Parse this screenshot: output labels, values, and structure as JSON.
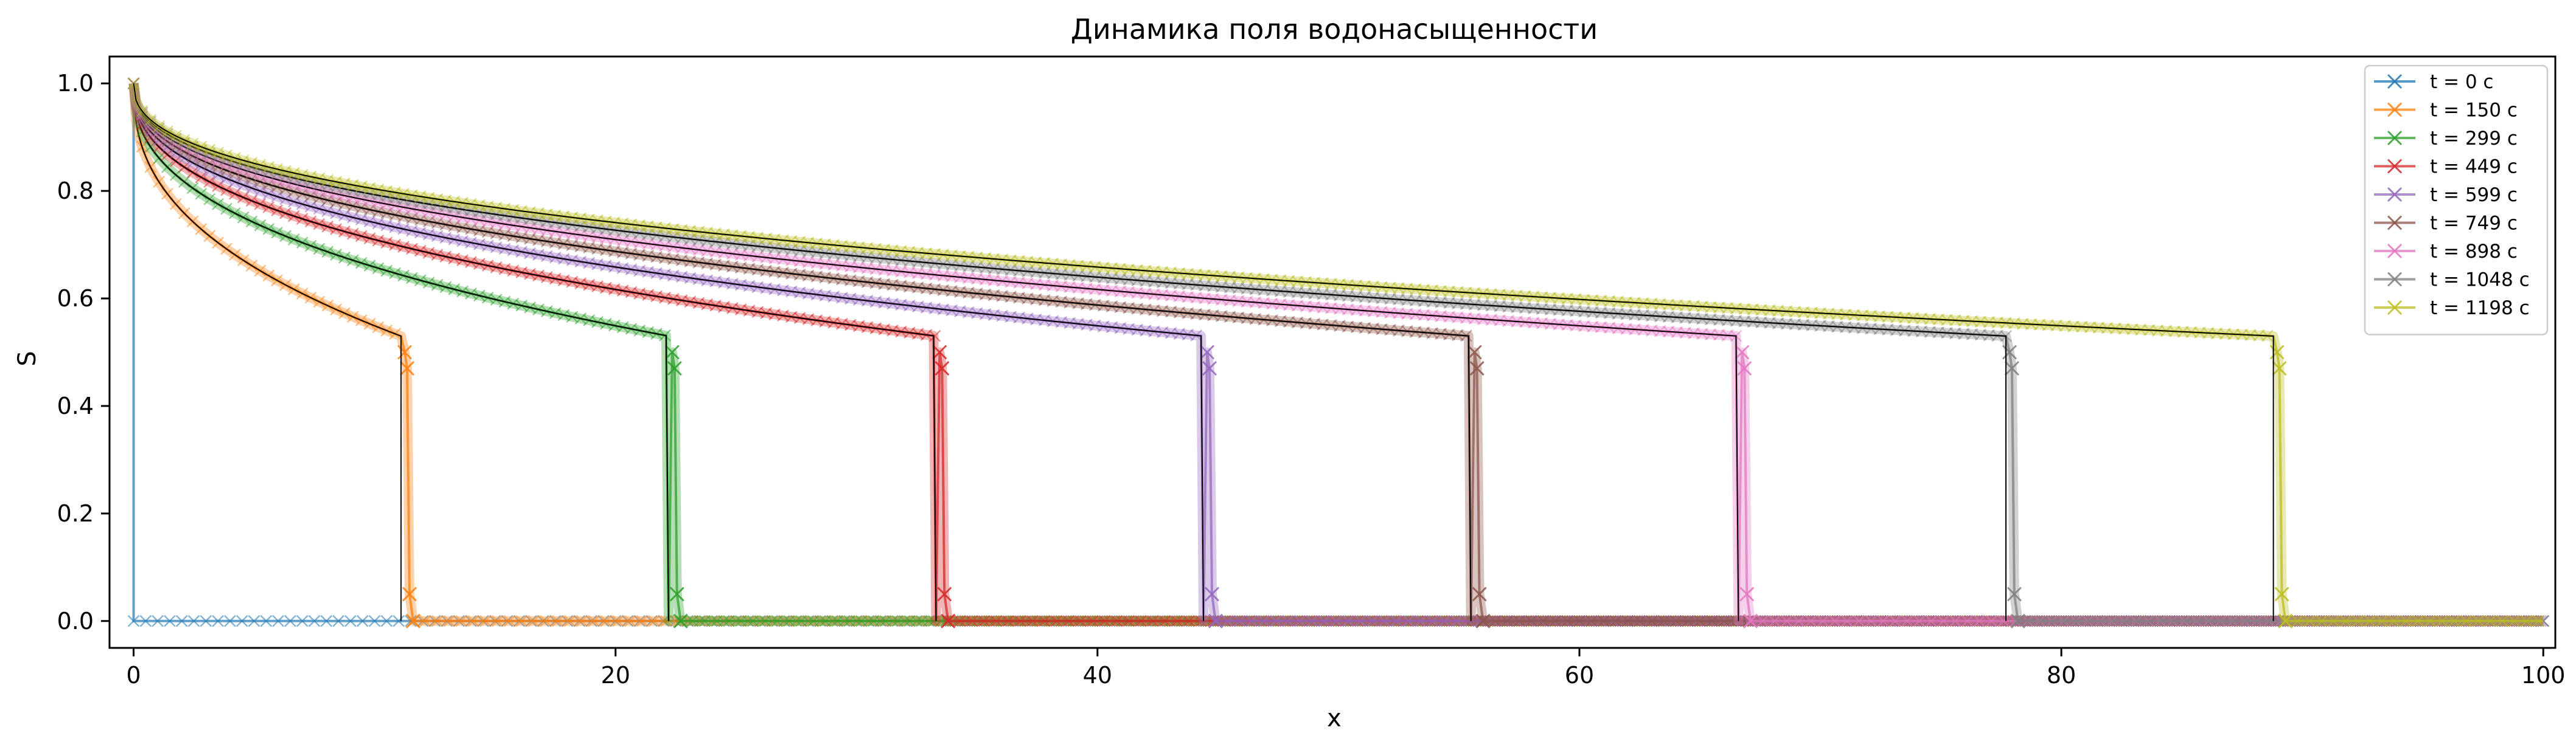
{
  "chart_data": {
    "type": "line",
    "title": "Динамика поля водонасыщенности",
    "xlabel": "x",
    "ylabel": "S",
    "xlim": [
      -1,
      100.5
    ],
    "ylim": [
      -0.05,
      1.05
    ],
    "xticks": [
      0,
      20,
      40,
      60,
      80,
      100
    ],
    "yticks": [
      0.0,
      0.2,
      0.4,
      0.6,
      0.8,
      1.0
    ],
    "grid": false,
    "legend_position": "top-right",
    "series": [
      {
        "name": "t = 0 с",
        "time": 0,
        "front_x": 0.0,
        "color": "#1f77b4"
      },
      {
        "name": "t = 150 с",
        "time": 150,
        "front_x": 11.1,
        "color": "#ff7f0e"
      },
      {
        "name": "t = 299 с",
        "time": 299,
        "front_x": 22.2,
        "color": "#2ca02c"
      },
      {
        "name": "t = 449 с",
        "time": 449,
        "front_x": 33.3,
        "color": "#d62728"
      },
      {
        "name": "t = 599 с",
        "time": 599,
        "front_x": 44.4,
        "color": "#9467bd"
      },
      {
        "name": "t = 749 с",
        "time": 749,
        "front_x": 55.5,
        "color": "#8c564b"
      },
      {
        "name": "t = 898 с",
        "time": 898,
        "front_x": 66.6,
        "color": "#e377c2"
      },
      {
        "name": "t = 1048 с",
        "time": 1048,
        "front_x": 77.7,
        "color": "#7f7f7f"
      },
      {
        "name": "t = 1198 с",
        "time": 1198,
        "front_x": 88.8,
        "color": "#bcbd22"
      }
    ],
    "front_saturation": 0.53,
    "exact_solution_color": "#000000"
  }
}
